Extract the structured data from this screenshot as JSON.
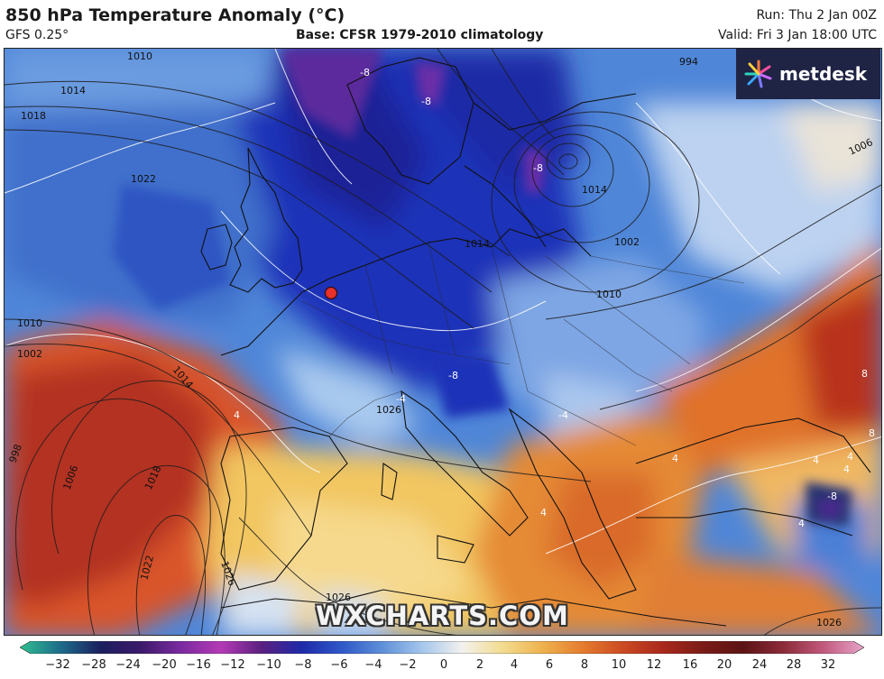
{
  "header": {
    "title": "850 hPa Temperature Anomaly (°C)",
    "model": "GFS 0.25°",
    "base": "Base: CFSR 1979-2010 climatology",
    "run": "Run: Thu 2 Jan 00Z",
    "valid": "Valid: Fri 3 Jan 18:00 UTC"
  },
  "logo": {
    "text": "metdesk"
  },
  "watermark": "WXCHARTS.COM",
  "map": {
    "isobar_labels": [
      "1010",
      "1014",
      "1018",
      "1022",
      "1010",
      "1002",
      "998",
      "1006",
      "1018",
      "1022",
      "1014",
      "1026",
      "1026",
      "1026",
      "1026",
      "1010",
      "1002",
      "1006",
      "994",
      "1014",
      "1014"
    ],
    "anomaly_labels": [
      "-8",
      "-8",
      "-8",
      "-4",
      "-4",
      "-8",
      "4",
      "4",
      "4",
      "-8",
      "8",
      "8",
      "4",
      "4",
      "4",
      "4"
    ],
    "marker": {
      "color": "#e8312c"
    }
  },
  "colorbar": {
    "ticks": [
      "−32",
      "−28",
      "−24",
      "−20",
      "−16",
      "−12",
      "−10",
      "−8",
      "−6",
      "−4",
      "−2",
      "0",
      "2",
      "4",
      "6",
      "8",
      "10",
      "12",
      "16",
      "20",
      "24",
      "28",
      "32"
    ],
    "colors": [
      "#2fbf8f",
      "#1d6d8a",
      "#1b1f5e",
      "#3b1a6a",
      "#7a2aa0",
      "#b43ab5",
      "#5b2080",
      "#1f2aa8",
      "#2f57c8",
      "#5d8fd8",
      "#a5c6ec",
      "#f3f1ee",
      "#f3dc8f",
      "#eeb24e",
      "#e57c2e",
      "#cc4a22",
      "#a9281c",
      "#7a1b17",
      "#5c1414",
      "#8d2b3a",
      "#c25a7e",
      "#e6a5c9"
    ]
  }
}
